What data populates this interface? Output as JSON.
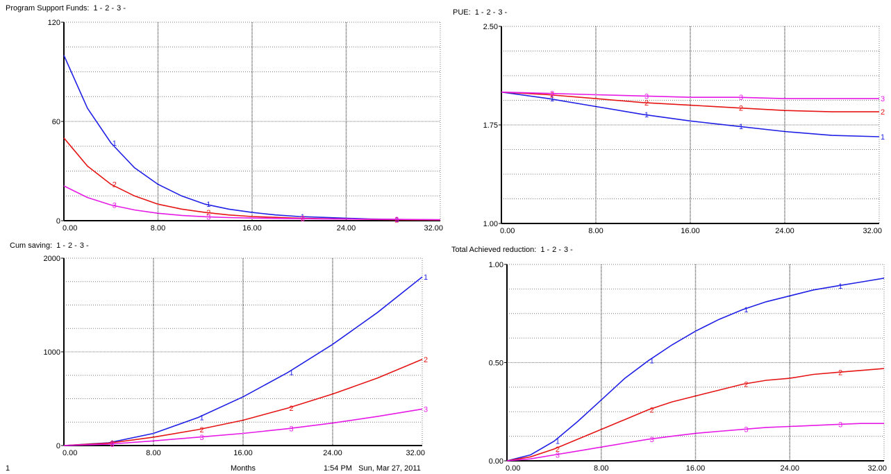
{
  "colors": {
    "series1": "#1f1fe6",
    "series2": "#e61414",
    "series3": "#e619e6",
    "grid": "#7a7a7a",
    "axis": "#000000"
  },
  "footer": {
    "page_number": "1",
    "x_axis_label": "Months",
    "timestamp": "1:54 PM   Sun, Mar 27, 2011"
  },
  "chart_data": [
    {
      "id": "program-support-funds",
      "type": "line",
      "title": "Program Support  Funds:",
      "series_labels": [
        "1",
        "2",
        "3"
      ],
      "xlim": [
        0,
        32
      ],
      "ylim": [
        0,
        120
      ],
      "xticks": [
        "0.00",
        "8.00",
        "16.00",
        "24.00",
        "32.00"
      ],
      "yticks": [
        "0",
        "60",
        "120"
      ],
      "series": [
        {
          "name": "1",
          "x": [
            0,
            2,
            4,
            6,
            8,
            10,
            12,
            14,
            16,
            18,
            20,
            22,
            24,
            26,
            28,
            30,
            32
          ],
          "values": [
            100,
            68,
            47,
            32,
            22,
            15,
            10,
            7,
            5,
            3.5,
            2.5,
            2,
            1.5,
            1,
            0.8,
            0.6,
            0.5
          ]
        },
        {
          "name": "2",
          "x": [
            0,
            2,
            4,
            6,
            8,
            10,
            12,
            14,
            16,
            18,
            20,
            22,
            24,
            26,
            28,
            30,
            32
          ],
          "values": [
            50,
            33,
            22,
            15,
            10,
            7,
            5,
            3.5,
            2.5,
            2,
            1.5,
            1.2,
            1,
            0.8,
            0.6,
            0.5,
            0.4
          ]
        },
        {
          "name": "3",
          "x": [
            0,
            2,
            4,
            6,
            8,
            10,
            12,
            14,
            16,
            18,
            20,
            22,
            24,
            26,
            28,
            30,
            32
          ],
          "values": [
            21,
            14,
            9.5,
            6.5,
            4.5,
            3.2,
            2.4,
            1.9,
            1.6,
            1.4,
            1.2,
            1.1,
            1,
            0.9,
            0.8,
            0.7,
            0.6
          ]
        }
      ]
    },
    {
      "id": "pue",
      "type": "line",
      "title": "PUE:",
      "series_labels": [
        "1",
        "2",
        "3"
      ],
      "xlim": [
        0,
        32
      ],
      "ylim": [
        1.0,
        2.5
      ],
      "xticks": [
        "0.00",
        "8.00",
        "16.00",
        "24.00",
        "32.00"
      ],
      "yticks": [
        "1.00",
        "1.75",
        "2.50"
      ],
      "series": [
        {
          "name": "1",
          "x": [
            0,
            4,
            8,
            12,
            16,
            20,
            24,
            28,
            32
          ],
          "values": [
            2.0,
            1.95,
            1.89,
            1.83,
            1.78,
            1.74,
            1.7,
            1.67,
            1.66
          ]
        },
        {
          "name": "2",
          "x": [
            0,
            4,
            8,
            12,
            16,
            20,
            24,
            28,
            32
          ],
          "values": [
            2.0,
            1.98,
            1.95,
            1.92,
            1.9,
            1.88,
            1.86,
            1.85,
            1.85
          ]
        },
        {
          "name": "3",
          "x": [
            0,
            4,
            8,
            12,
            16,
            20,
            24,
            28,
            32
          ],
          "values": [
            2.0,
            1.99,
            1.98,
            1.97,
            1.96,
            1.96,
            1.95,
            1.95,
            1.95
          ]
        }
      ]
    },
    {
      "id": "cum-saving",
      "type": "line",
      "title": "Cum saving:",
      "series_labels": [
        "1",
        "2",
        "3"
      ],
      "xlim": [
        0,
        32
      ],
      "ylim": [
        0,
        2000
      ],
      "xticks": [
        "0.00",
        "8.00",
        "16.00",
        "24.00",
        "32.00"
      ],
      "yticks": [
        "0",
        "1000",
        "2000"
      ],
      "series": [
        {
          "name": "1",
          "x": [
            0,
            4,
            8,
            12,
            16,
            20,
            24,
            28,
            32
          ],
          "values": [
            0,
            30,
            130,
            300,
            520,
            780,
            1080,
            1420,
            1800
          ]
        },
        {
          "name": "2",
          "x": [
            0,
            4,
            8,
            12,
            16,
            20,
            24,
            28,
            32
          ],
          "values": [
            0,
            25,
            90,
            170,
            270,
            400,
            550,
            720,
            920
          ]
        },
        {
          "name": "3",
          "x": [
            0,
            4,
            8,
            12,
            16,
            20,
            24,
            28,
            32
          ],
          "values": [
            0,
            15,
            50,
            90,
            130,
            180,
            240,
            310,
            390
          ]
        }
      ]
    },
    {
      "id": "total-achieved-reduction",
      "type": "line",
      "title": "Total Achieved  reduction:",
      "series_labels": [
        "1",
        "2",
        "3"
      ],
      "xlim": [
        0,
        32
      ],
      "ylim": [
        0,
        1.0
      ],
      "xticks": [
        "0.00",
        "8.00",
        "16.00",
        "24.00",
        "32.00"
      ],
      "yticks": [
        "0.00",
        "0.50",
        "1.00"
      ],
      "series": [
        {
          "name": "1",
          "x": [
            0,
            2,
            4,
            6,
            8,
            10,
            12,
            14,
            16,
            18,
            20,
            22,
            24,
            26,
            28,
            30,
            32
          ],
          "values": [
            0,
            0.03,
            0.1,
            0.2,
            0.31,
            0.42,
            0.51,
            0.59,
            0.66,
            0.72,
            0.77,
            0.81,
            0.84,
            0.87,
            0.89,
            0.91,
            0.93
          ]
        },
        {
          "name": "2",
          "x": [
            0,
            2,
            4,
            6,
            8,
            10,
            12,
            14,
            16,
            18,
            20,
            22,
            24,
            26,
            28,
            30,
            32
          ],
          "values": [
            0,
            0.02,
            0.06,
            0.11,
            0.16,
            0.21,
            0.26,
            0.3,
            0.33,
            0.36,
            0.39,
            0.41,
            0.42,
            0.44,
            0.45,
            0.46,
            0.47
          ]
        },
        {
          "name": "3",
          "x": [
            0,
            2,
            4,
            6,
            8,
            10,
            12,
            14,
            16,
            18,
            20,
            22,
            24,
            26,
            28,
            30,
            32
          ],
          "values": [
            0,
            0.01,
            0.03,
            0.05,
            0.07,
            0.09,
            0.11,
            0.125,
            0.14,
            0.15,
            0.16,
            0.17,
            0.175,
            0.18,
            0.185,
            0.19,
            0.19
          ]
        }
      ]
    }
  ]
}
